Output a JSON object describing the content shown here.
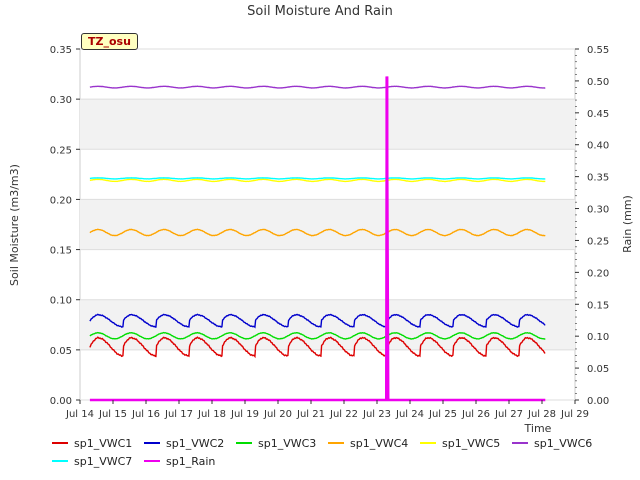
{
  "chart_data": {
    "type": "line",
    "title": "Soil Moisture And Rain",
    "badge": "TZ_osu",
    "ylabel": "Soil Moisture (m3/m3)",
    "y2label": "Rain (mm)",
    "xlabel": "Time",
    "xlim": [
      14,
      29
    ],
    "ylim": [
      0,
      0.35
    ],
    "y2lim": [
      0,
      0.55
    ],
    "xticks": [
      "Jul 14",
      "Jul 15",
      "Jul 16",
      "Jul 17",
      "Jul 18",
      "Jul 19",
      "Jul 20",
      "Jul 21",
      "Jul 22",
      "Jul 23",
      "Jul 24",
      "Jul 25",
      "Jul 26",
      "Jul 27",
      "Jul 28",
      "Jul 29"
    ],
    "yticks": [
      "0.00",
      "0.05",
      "0.10",
      "0.15",
      "0.20",
      "0.25",
      "0.30",
      "0.35"
    ],
    "y2ticks": [
      "0.00",
      "0.05",
      "0.10",
      "0.15",
      "0.20",
      "0.25",
      "0.30",
      "0.35",
      "0.40",
      "0.45",
      "0.50",
      "0.55"
    ],
    "series": [
      {
        "name": "sp1_VWC1",
        "color": "#dd0000",
        "axis": "left",
        "base": 0.053,
        "amp": 0.009,
        "start": 14.3
      },
      {
        "name": "sp1_VWC2",
        "color": "#0000cc",
        "axis": "left",
        "base": 0.079,
        "amp": 0.006,
        "start": 14.3
      },
      {
        "name": "sp1_VWC3",
        "color": "#00dd00",
        "axis": "left",
        "base": 0.064,
        "amp": 0.003,
        "start": 14.3
      },
      {
        "name": "sp1_VWC4",
        "color": "#ffa500",
        "axis": "left",
        "base": 0.167,
        "amp": 0.003,
        "start": 14.3
      },
      {
        "name": "sp1_VWC5",
        "color": "#ffff00",
        "axis": "left",
        "base": 0.219,
        "amp": 0.001,
        "start": 14.3
      },
      {
        "name": "sp1_VWC6",
        "color": "#9933cc",
        "axis": "left",
        "base": 0.312,
        "amp": 0.0008,
        "start": 14.3
      },
      {
        "name": "sp1_VWC7",
        "color": "#00ffff",
        "axis": "left",
        "base": 0.221,
        "amp": 0.0005,
        "start": 14.3
      },
      {
        "name": "sp1_Rain",
        "color": "#ee00ee",
        "axis": "right",
        "base": 0,
        "amp": 0,
        "start": 14.3,
        "spike_x": 23.3,
        "spike_y": 0.507
      }
    ]
  }
}
